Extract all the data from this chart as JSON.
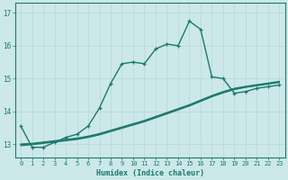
{
  "title": "",
  "xlabel": "Humidex (Indice chaleur)",
  "background_color": "#cce8e8",
  "line_color": "#1a7a6e",
  "grid_color": "#b8d8d8",
  "xlim": [
    -0.5,
    23.5
  ],
  "ylim": [
    12.6,
    17.3
  ],
  "yticks": [
    13,
    14,
    15,
    16,
    17
  ],
  "xticks": [
    0,
    1,
    2,
    3,
    4,
    5,
    6,
    7,
    8,
    9,
    10,
    11,
    12,
    13,
    14,
    15,
    16,
    17,
    18,
    19,
    20,
    21,
    22,
    23
  ],
  "series_main_x": [
    0,
    1,
    2,
    3,
    4,
    5,
    6,
    7,
    8,
    9,
    10,
    11,
    12,
    13,
    14,
    15,
    16,
    17,
    18,
    19,
    20,
    21,
    22,
    23
  ],
  "series_main_y": [
    13.55,
    12.9,
    12.9,
    13.05,
    13.2,
    13.3,
    13.55,
    14.1,
    14.85,
    15.45,
    15.5,
    15.45,
    15.9,
    16.05,
    16.0,
    16.75,
    16.5,
    15.05,
    15.0,
    14.55,
    14.6,
    14.7,
    14.75,
    14.8
  ],
  "series_line2_x": [
    0,
    1,
    2,
    3,
    4,
    5,
    6,
    7,
    8,
    9,
    10,
    11,
    12,
    13,
    14,
    15,
    16,
    17,
    18,
    19,
    20,
    21,
    22,
    23
  ],
  "series_line2_y": [
    12.95,
    12.98,
    13.02,
    13.06,
    13.1,
    13.14,
    13.2,
    13.28,
    13.38,
    13.48,
    13.58,
    13.68,
    13.8,
    13.92,
    14.04,
    14.16,
    14.3,
    14.44,
    14.56,
    14.66,
    14.73,
    14.78,
    14.83,
    14.88
  ],
  "series_line3_x": [
    0,
    1,
    2,
    3,
    4,
    5,
    6,
    7,
    8,
    9,
    10,
    11,
    12,
    13,
    14,
    15,
    16,
    17,
    18,
    19,
    20,
    21,
    22,
    23
  ],
  "series_line3_y": [
    12.98,
    13.0,
    13.04,
    13.08,
    13.12,
    13.16,
    13.22,
    13.3,
    13.4,
    13.5,
    13.6,
    13.7,
    13.82,
    13.94,
    14.06,
    14.18,
    14.32,
    14.46,
    14.58,
    14.68,
    14.74,
    14.79,
    14.84,
    14.89
  ],
  "series_line4_x": [
    0,
    1,
    2,
    3,
    4,
    5,
    6,
    7,
    8,
    9,
    10,
    11,
    12,
    13,
    14,
    15,
    16,
    17,
    18,
    19,
    20,
    21,
    22,
    23
  ],
  "series_line4_y": [
    13.0,
    13.02,
    13.06,
    13.1,
    13.14,
    13.18,
    13.24,
    13.32,
    13.42,
    13.52,
    13.62,
    13.72,
    13.84,
    13.96,
    14.08,
    14.2,
    14.34,
    14.48,
    14.6,
    14.7,
    14.76,
    14.81,
    14.86,
    14.91
  ]
}
